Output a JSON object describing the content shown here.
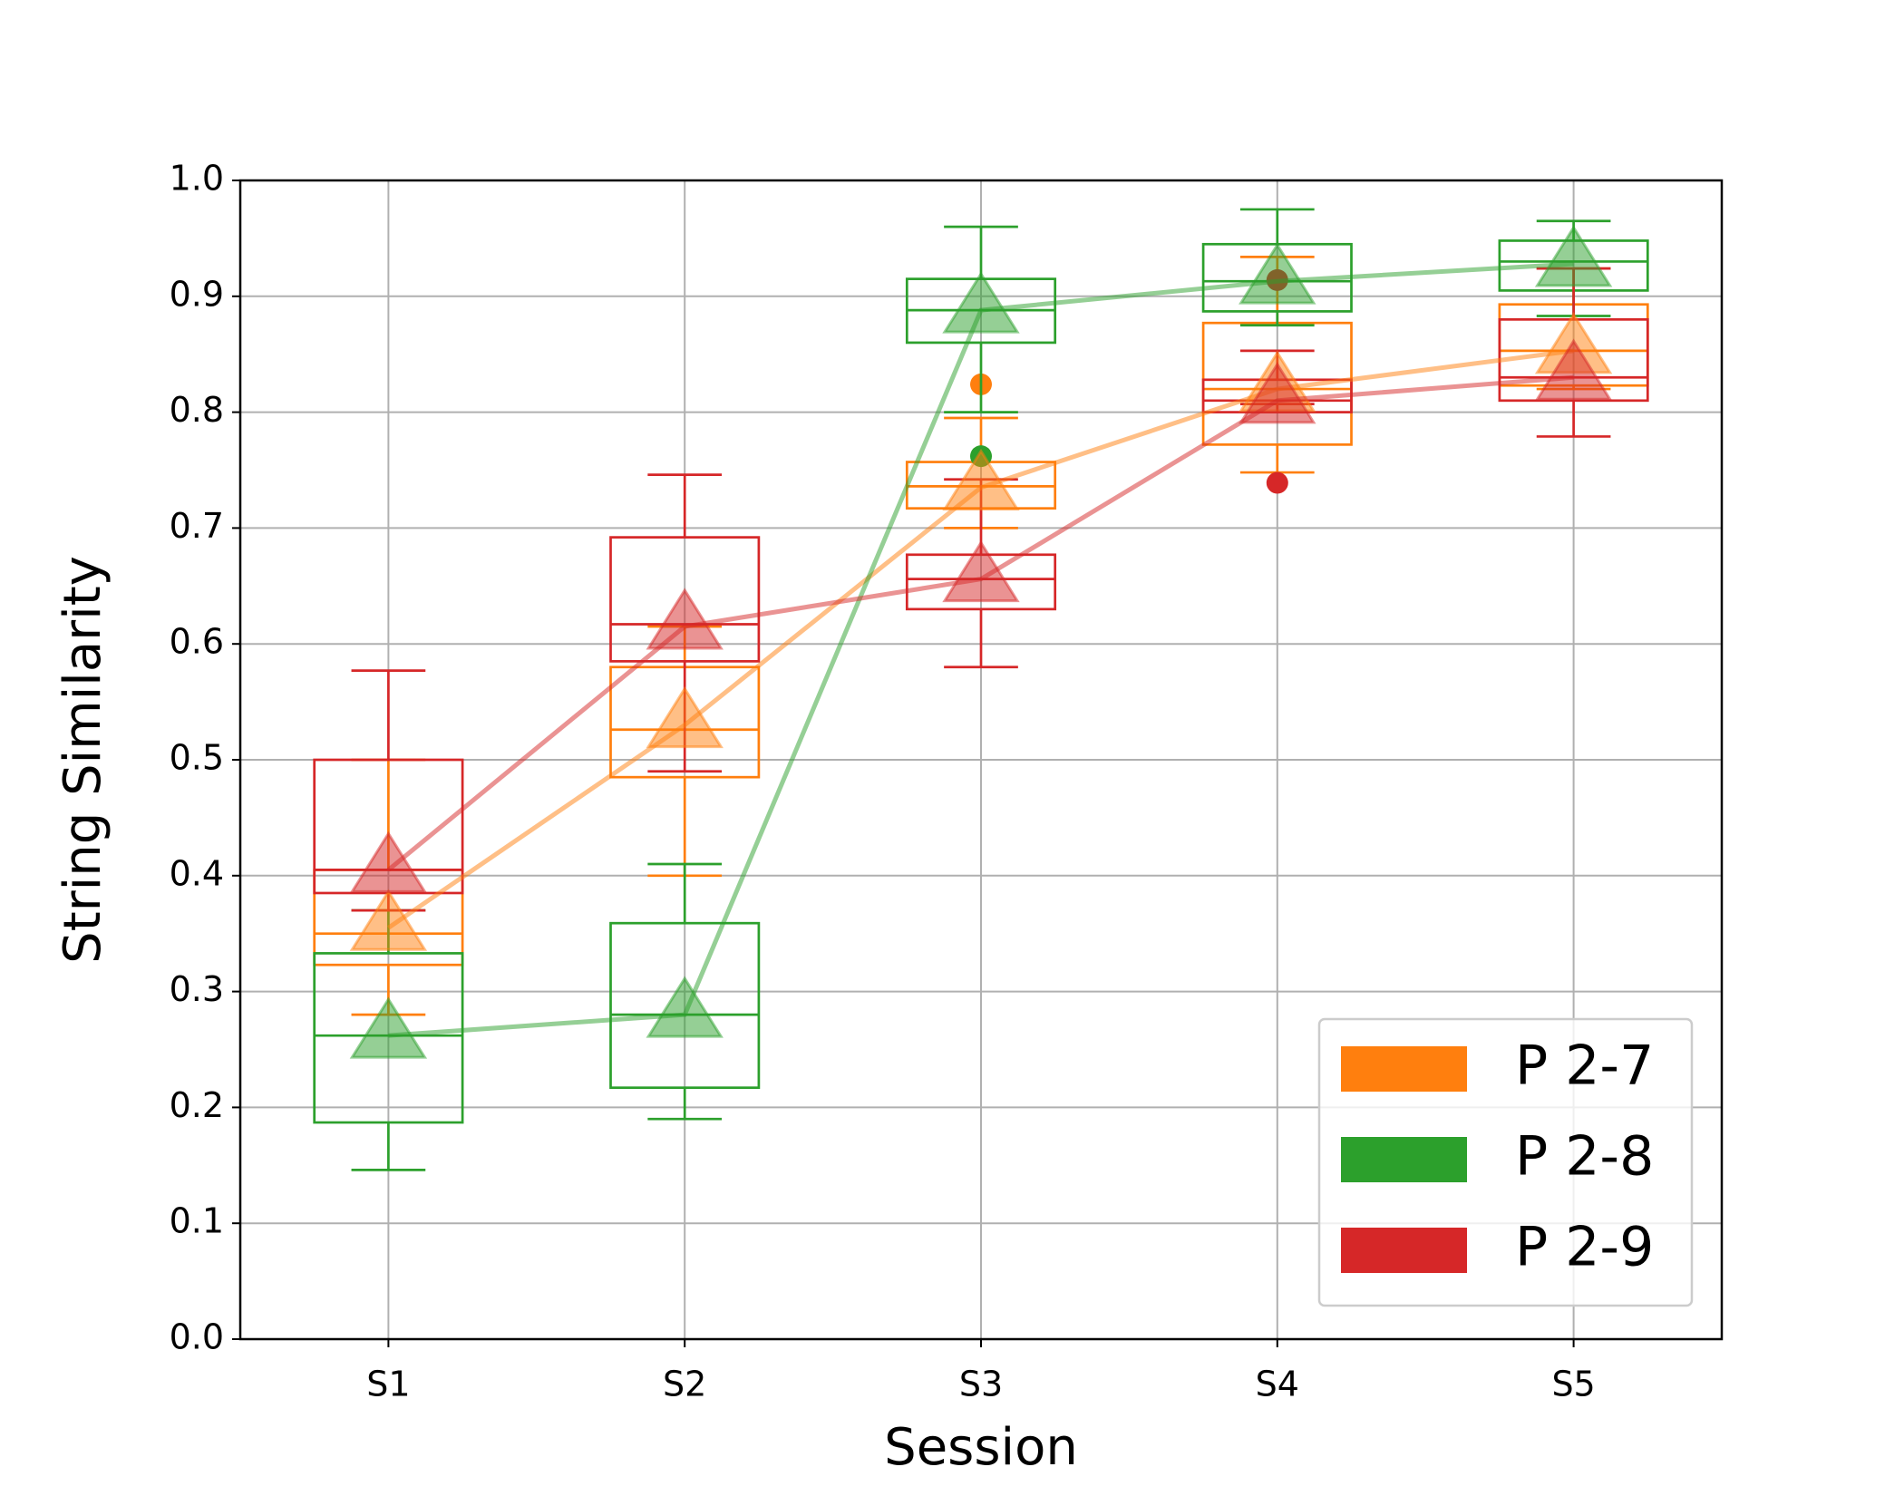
{
  "chart_data": {
    "type": "box",
    "xlabel": "Session",
    "ylabel": "String Similarity",
    "categories": [
      "S1",
      "S2",
      "S3",
      "S4",
      "S5"
    ],
    "ylim": [
      0,
      1
    ],
    "yticks": [
      {
        "value": 0,
        "label": "0.0"
      },
      0.1,
      0.2,
      0.3,
      0.4,
      0.5,
      0.6,
      0.7,
      0.8,
      0.9,
      {
        "value": 1,
        "label": "1.0"
      }
    ],
    "grid": true,
    "legend": "lower right",
    "series": [
      {
        "name": "P 2-7",
        "color": "#ff7f0e",
        "whislo": [
          0.28,
          0.4,
          0.7,
          0.748,
          0.82
        ],
        "q1": [
          0.323,
          0.485,
          0.717,
          0.772,
          0.823
        ],
        "median": [
          0.35,
          0.526,
          0.736,
          0.82,
          0.853
        ],
        "q3": [
          0.405,
          0.58,
          0.757,
          0.877,
          0.893
        ],
        "whishi": [
          0.5,
          0.615,
          0.795,
          0.934,
          0.924
        ],
        "mean": [
          0.355,
          0.53,
          0.735,
          0.82,
          0.853
        ],
        "outliers": [
          [],
          [],
          [
            0.824
          ],
          [],
          []
        ]
      },
      {
        "name": "P 2-8",
        "color": "#2ca02c",
        "whislo": [
          0.146,
          0.19,
          0.8,
          0.875,
          0.883
        ],
        "q1": [
          0.187,
          0.217,
          0.86,
          0.887,
          0.905
        ],
        "median": [
          0.262,
          0.28,
          0.888,
          0.913,
          0.93
        ],
        "q3": [
          0.333,
          0.359,
          0.915,
          0.945,
          0.948
        ],
        "whishi": [
          0.37,
          0.41,
          0.96,
          0.975,
          0.965
        ],
        "mean": [
          0.262,
          0.28,
          0.888,
          0.913,
          0.928
        ],
        "outliers": [
          [],
          [],
          [
            0.762
          ],
          [],
          []
        ]
      },
      {
        "name": "P 2-9",
        "color": "#d62728",
        "whislo": [
          0.37,
          0.49,
          0.58,
          0.807,
          0.779
        ],
        "q1": [
          0.385,
          0.585,
          0.63,
          0.8,
          0.81
        ],
        "median": [
          0.405,
          0.617,
          0.656,
          0.81,
          0.83
        ],
        "q3": [
          0.5,
          0.692,
          0.677,
          0.828,
          0.88
        ],
        "whishi": [
          0.577,
          0.746,
          0.742,
          0.853,
          0.924
        ],
        "mean": [
          0.405,
          0.615,
          0.656,
          0.81,
          0.83
        ],
        "outliers": [
          [],
          [],
          [],
          [
            0.914,
            0.739
          ],
          []
        ]
      }
    ]
  }
}
